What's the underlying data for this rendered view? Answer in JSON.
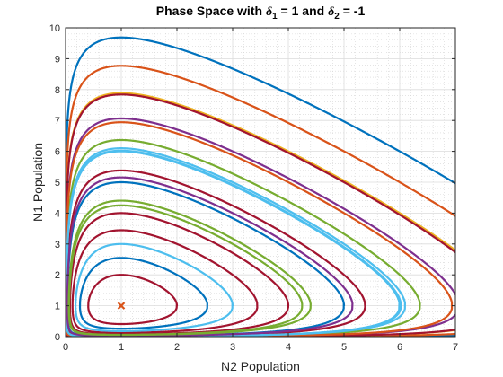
{
  "chart_data": {
    "type": "line",
    "title_parts": [
      "Phase Space with ",
      "δ",
      "1",
      " = 1 and ",
      "δ",
      "2",
      " = -1"
    ],
    "xlabel": "N2 Population",
    "ylabel": "N1 Population",
    "xlim": [
      0,
      7
    ],
    "ylim": [
      0,
      10
    ],
    "xticks": [
      "0",
      "1",
      "2",
      "3",
      "4",
      "5",
      "6",
      "7"
    ],
    "yticks": [
      "0",
      "1",
      "2",
      "3",
      "4",
      "5",
      "6",
      "7",
      "8",
      "9",
      "10"
    ],
    "grid": true,
    "minor_grid": true,
    "equilibrium": {
      "x": 1,
      "y": 1,
      "marker": "x",
      "color": "#D95319"
    },
    "series": [
      {
        "start": [
          6,
          6
        ],
        "n2_end": 0.82,
        "color": "#0072BD"
      },
      {
        "start": [
          6,
          5
        ],
        "n2_end": 0.82,
        "color": "#D95319"
      },
      {
        "start": [
          6,
          4
        ],
        "n2_end": 0.82,
        "color": "#EDB120"
      },
      {
        "start": [
          6,
          3
        ],
        "n2_end": 0.82,
        "color": "#7E2F8E"
      },
      {
        "start": [
          6,
          2
        ],
        "n2_end": 0.82,
        "color": "#77AC30"
      },
      {
        "start": [
          6,
          1
        ],
        "n2_end": 0.82,
        "color": "#4DBEEE"
      },
      {
        "start": [
          5,
          5
        ],
        "n2_end": 0.82,
        "color": "#A2142F"
      },
      {
        "start": [
          5,
          4
        ],
        "n2_end": 0.82,
        "color": "#D95319"
      },
      {
        "start": [
          5,
          3
        ],
        "n2_end": 0.82,
        "color": "#4DBEEE"
      },
      {
        "start": [
          5,
          2
        ],
        "n2_end": 0.82,
        "color": "#A2142F"
      },
      {
        "start": [
          5,
          1
        ],
        "n2_end": 0.82,
        "color": "#0072BD"
      },
      {
        "start": [
          4,
          4
        ],
        "n2_end": 0.82,
        "color": "#4DBEEE"
      },
      {
        "start": [
          4,
          3
        ],
        "n2_end": 0.82,
        "color": "#7E2F8E"
      },
      {
        "start": [
          4,
          2
        ],
        "n2_end": 0.82,
        "color": "#77AC30"
      },
      {
        "start": [
          4,
          1
        ],
        "n2_end": 0.82,
        "color": "#A2142F"
      },
      {
        "start": [
          3,
          3
        ],
        "n2_end": 0.82,
        "color": "#77AC30"
      },
      {
        "start": [
          3,
          2
        ],
        "n2_end": 0.82,
        "color": "#A2142F"
      },
      {
        "start": [
          3,
          1
        ],
        "n2_end": 0.82,
        "color": "#4DBEEE"
      },
      {
        "start": [
          2,
          2
        ],
        "n2_end": 0.82,
        "color": "#0072BD"
      },
      {
        "start": [
          2,
          1
        ],
        "n2_end": 0.82,
        "color": "#A2142F"
      }
    ]
  }
}
